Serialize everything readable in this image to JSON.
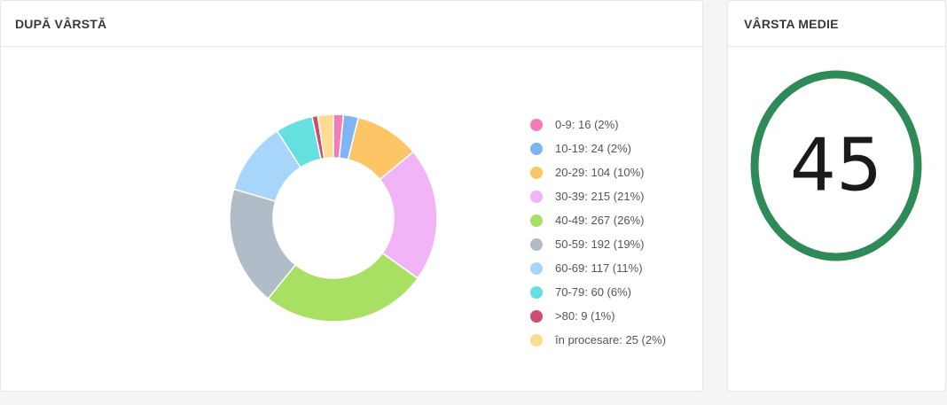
{
  "cards": {
    "age": {
      "title": "DUPĂ VÂRSTĂ"
    },
    "average": {
      "title": "VÂRSTA MEDIE",
      "value": "45",
      "ring_color": "#2e8b57"
    }
  },
  "chart_data": {
    "type": "pie",
    "donut": true,
    "title": "DUPĂ VÂRSTĂ",
    "categories": [
      "0-9",
      "10-19",
      "20-29",
      "30-39",
      "40-49",
      "50-59",
      "60-69",
      "70-79",
      ">80",
      "în procesare"
    ],
    "values": [
      16,
      24,
      104,
      215,
      267,
      192,
      117,
      60,
      9,
      25
    ],
    "percents": [
      "2%",
      "2%",
      "10%",
      "21%",
      "26%",
      "19%",
      "11%",
      "6%",
      "1%",
      "2%"
    ],
    "colors": [
      "#f47cb8",
      "#7fb5f5",
      "#fcc565",
      "#f1b4f7",
      "#a8e063",
      "#b2bcc9",
      "#a8d6fb",
      "#66dfe0",
      "#cc4e6e",
      "#fddc92"
    ],
    "legend_labels": [
      "0-9: 16 (2%)",
      "10-19: 24 (2%)",
      "20-29: 104 (10%)",
      "30-39: 215 (21%)",
      "40-49: 267 (26%)",
      "50-59: 192 (19%)",
      "60-69: 117 (11%)",
      "70-79: 60 (6%)",
      ">80: 9 (1%)",
      "în procesare: 25 (2%)"
    ],
    "legend_placement": "right"
  }
}
